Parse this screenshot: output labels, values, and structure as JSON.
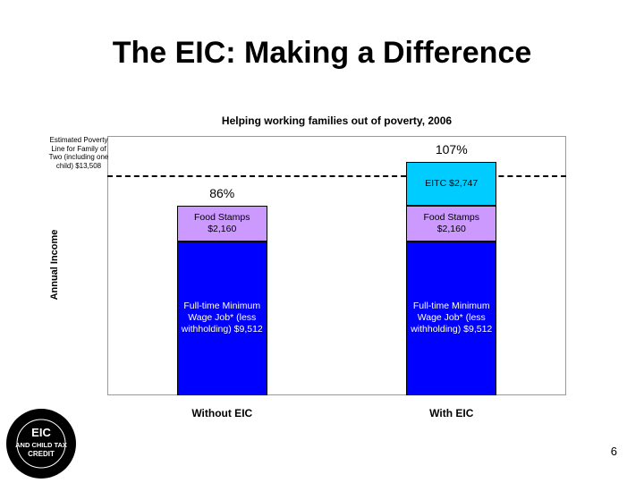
{
  "slide_title": "The EIC: Making a Difference",
  "page_number": "6",
  "logo_text": [
    "EIC",
    "AND CHILD TAX",
    "CREDIT"
  ],
  "chart_data": {
    "type": "stacked_bar",
    "title": "Helping working families out of poverty, 2006",
    "y_axis_label": "Annual Income",
    "categories": [
      "Without EIC",
      "With EIC"
    ],
    "ylim": [
      0,
      16000
    ],
    "series": [
      {
        "color": "#0000ff",
        "values": [
          9512,
          9512
        ],
        "value_labels": [
          "Full-time Minimum Wage Job* (less withholding) $9,512",
          "Full-time Minimum Wage Job* (less withholding) $9,512"
        ]
      },
      {
        "color": "#cc99ff",
        "values": [
          2160,
          2160
        ],
        "value_labels": [
          "Food Stamps $2,160",
          "Food Stamps $2,160"
        ]
      },
      {
        "color": "#00ccff",
        "values": [
          null,
          2747
        ],
        "value_labels": [
          null,
          "EITC $2,747"
        ]
      }
    ],
    "percent_of_poverty": [
      86,
      107
    ],
    "percent_labels": [
      "86%",
      "107%"
    ],
    "reference_line": {
      "value": 13508,
      "label": "Estimated Poverty Line for Family of Two (including one child) $13,508"
    }
  }
}
